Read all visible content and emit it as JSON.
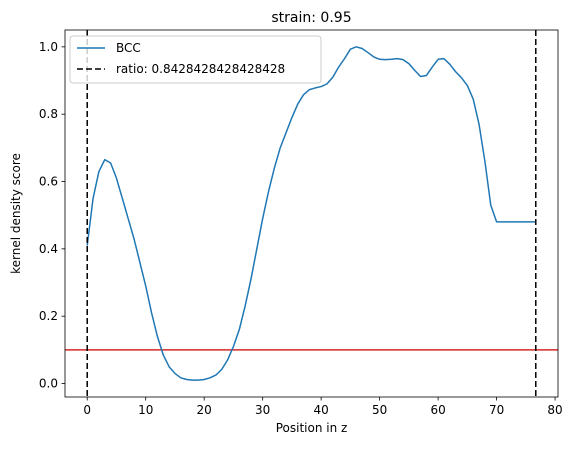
{
  "chart_data": {
    "type": "line",
    "title": "strain: 0.95",
    "xlabel": "Position in z",
    "ylabel": "kernel density score",
    "xlim": [
      -3.8,
      80.5
    ],
    "ylim": [
      -0.04,
      1.05
    ],
    "xticks": [
      "0",
      "10",
      "20",
      "30",
      "40",
      "50",
      "60",
      "70",
      "80"
    ],
    "yticks": [
      "0.0",
      "0.2",
      "0.4",
      "0.6",
      "0.8",
      "1.0"
    ],
    "grid": false,
    "legend_position": "upper-left",
    "series": [
      {
        "name": "BCC",
        "color": "#1f77b4",
        "style": "solid",
        "x": [
          0,
          0.5,
          1,
          2,
          3,
          4,
          5,
          6,
          7,
          8,
          9,
          10,
          11,
          12,
          13,
          14,
          15,
          16,
          17,
          18,
          19,
          20,
          21,
          22,
          23,
          24,
          25,
          26,
          27,
          28,
          29,
          30,
          31,
          32,
          33,
          34,
          35,
          36,
          37,
          38,
          39,
          40,
          41,
          42,
          43,
          44,
          45,
          46,
          47,
          48,
          49,
          50,
          51,
          52,
          53,
          54,
          55,
          56,
          57,
          58,
          59,
          60,
          61,
          62,
          63,
          64,
          65,
          66,
          67,
          68,
          69,
          70,
          71,
          72,
          73,
          74,
          75,
          76,
          76.7
        ],
        "y": [
          0.41,
          0.48,
          0.55,
          0.63,
          0.665,
          0.655,
          0.61,
          0.55,
          0.49,
          0.43,
          0.36,
          0.29,
          0.21,
          0.14,
          0.085,
          0.05,
          0.03,
          0.017,
          0.012,
          0.01,
          0.01,
          0.012,
          0.017,
          0.025,
          0.042,
          0.07,
          0.11,
          0.16,
          0.23,
          0.31,
          0.4,
          0.49,
          0.57,
          0.64,
          0.7,
          0.745,
          0.79,
          0.83,
          0.858,
          0.873,
          0.878,
          0.882,
          0.89,
          0.91,
          0.94,
          0.965,
          0.993,
          1.0,
          0.995,
          0.983,
          0.97,
          0.963,
          0.962,
          0.963,
          0.965,
          0.962,
          0.95,
          0.93,
          0.912,
          0.915,
          0.94,
          0.963,
          0.965,
          0.948,
          0.926,
          0.908,
          0.885,
          0.845,
          0.77,
          0.66,
          0.53,
          0.48,
          0.48,
          0.48,
          0.48,
          0.48,
          0.48,
          0.48,
          0.48
        ]
      },
      {
        "name": "ratio: 0.8428428428428428",
        "color": "#000000",
        "style": "dashed",
        "vlines_x": [
          0,
          76.7
        ]
      }
    ],
    "hline": {
      "y": 0.1,
      "color": "#d62728"
    }
  }
}
